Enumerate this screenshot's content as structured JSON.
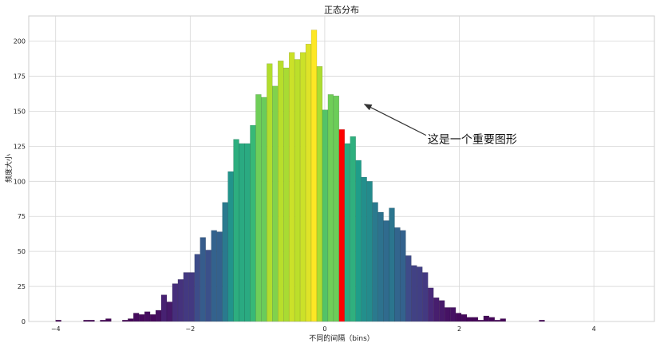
{
  "chart_data": {
    "type": "bar",
    "title": "正态分布",
    "xlabel": "不同的间隔（bins）",
    "ylabel": "频度大小",
    "xlim": [
      -4.4,
      4.9
    ],
    "ylim": [
      0,
      218
    ],
    "xticks": [
      -4,
      -2,
      0,
      2,
      4
    ],
    "yticks": [
      0,
      25,
      50,
      75,
      100,
      125,
      150,
      175,
      200
    ],
    "grid": true,
    "bin_width": 0.0826,
    "bins_x_start": -4.0,
    "bin_count": 90,
    "values": [
      1,
      0,
      0,
      0,
      0,
      1,
      1,
      0,
      1,
      2,
      0,
      0,
      1,
      2,
      6,
      5,
      7,
      5,
      8,
      19,
      14,
      27,
      30,
      35,
      35,
      48,
      60,
      51,
      65,
      64,
      85,
      107,
      130,
      127,
      127,
      140,
      162,
      160,
      184,
      168,
      186,
      181,
      192,
      187,
      192,
      198,
      208,
      182,
      151,
      162,
      161,
      137,
      127,
      132,
      115,
      103,
      100,
      85,
      78,
      72,
      81,
      67,
      65,
      47,
      40,
      39,
      35,
      24,
      17,
      15,
      10,
      10,
      6,
      5,
      3,
      3,
      1,
      4,
      3,
      1,
      2,
      0,
      0,
      0,
      0,
      0,
      0,
      1,
      0,
      0
    ],
    "highlight_index": 51,
    "highlight_color": "#ff0000",
    "colormap": "viridis",
    "annotation": {
      "text": "这是一个重要图形",
      "point_x": 0.59,
      "point_y": 155,
      "text_x": 1.53,
      "text_y": 130
    }
  }
}
